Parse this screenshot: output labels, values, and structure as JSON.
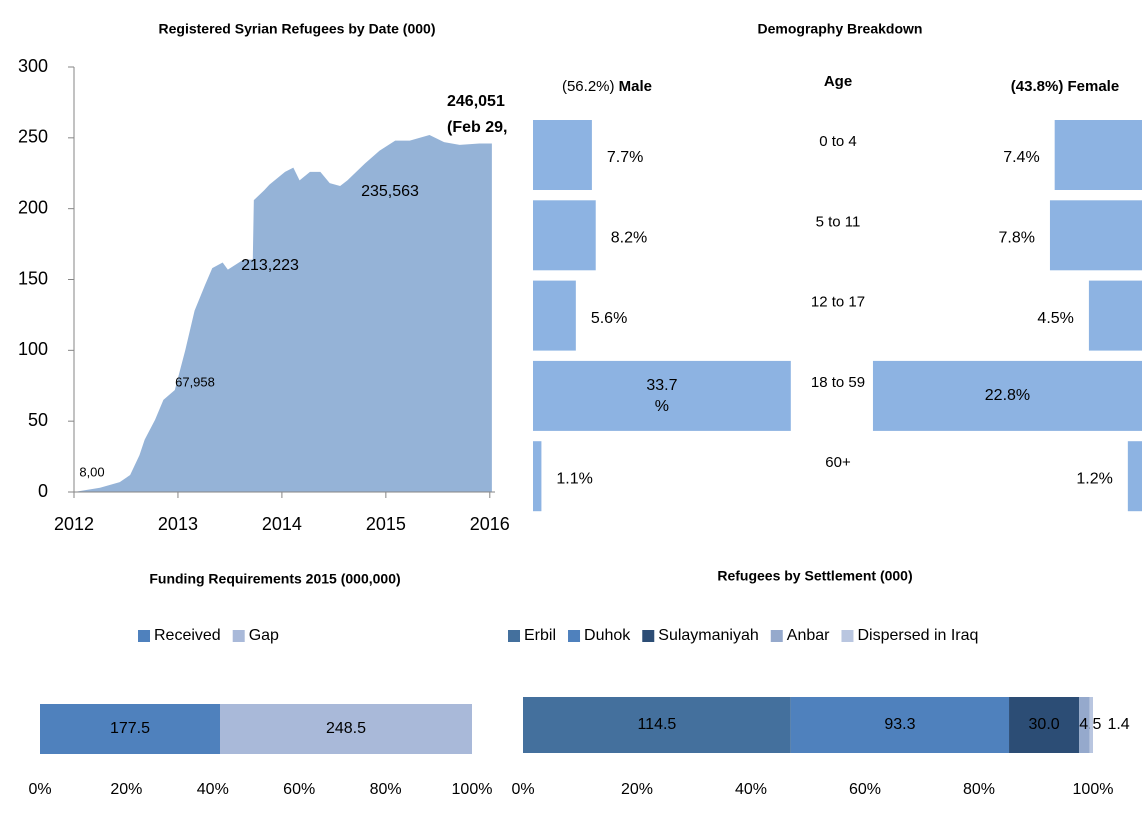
{
  "chart_data": [
    {
      "type": "area",
      "title": "Registered Syrian Refugees by Date (000)",
      "x": [
        2012.0,
        2012.25,
        2012.44,
        2012.54,
        2012.63,
        2012.68,
        2012.78,
        2012.86,
        2012.97,
        2013.07,
        2013.16,
        2013.26,
        2013.33,
        2013.43,
        2013.48,
        2013.63,
        2013.72,
        2013.73,
        2013.83,
        2013.88,
        2014.03,
        2014.11,
        2014.17,
        2014.27,
        2014.37,
        2014.46,
        2014.56,
        2014.63,
        2014.8,
        2014.94,
        2015.09,
        2015.23,
        2015.42,
        2015.56,
        2015.71,
        2015.9,
        2016.02
      ],
      "series": [
        {
          "name": "Registered Syrian Refugees",
          "color": "#95b3d7",
          "values": [
            0,
            3,
            7,
            12,
            26,
            37,
            51,
            65,
            72,
            100,
            128,
            146,
            158,
            162,
            157,
            164,
            164,
            206,
            213,
            217,
            226,
            229,
            220,
            226,
            226,
            218,
            216,
            220,
            232,
            241,
            248,
            248,
            252,
            247,
            245,
            246,
            246
          ]
        }
      ],
      "xlim": [
        2012,
        2016.05
      ],
      "xticks": [
        2012,
        2013,
        2014,
        2015,
        2016
      ],
      "ylim": [
        0,
        300
      ],
      "yticks": [
        0,
        50,
        100,
        150,
        200,
        250,
        300
      ],
      "annotations": [
        {
          "text": "8,00"
        },
        {
          "text": "67,958"
        },
        {
          "text": "213,223"
        },
        {
          "text": "235,563"
        },
        {
          "text": "246,051",
          "color": "#c00000"
        },
        {
          "text": "(Feb 29,"
        }
      ]
    },
    {
      "type": "butterfly",
      "title": "Demography Breakdown",
      "category_label": "Age",
      "categories": [
        "0 to 4",
        "5 to 11",
        "12 to 17",
        "18 to 59",
        "60+"
      ],
      "series": [
        {
          "name": "Male",
          "share": "(56.2%)",
          "color": "#8db3e2",
          "values": [
            7.7,
            8.2,
            5.6,
            33.7,
            1.1
          ],
          "value_labels": [
            "7.7%",
            "8.2%",
            "5.6%",
            "33.7 %",
            "1.1%"
          ]
        },
        {
          "name": "Female",
          "share": "(43.8%)",
          "color": "#8db3e2",
          "values": [
            7.4,
            7.8,
            4.5,
            22.8,
            1.2
          ],
          "value_labels": [
            "7.4%",
            "7.8%",
            "4.5%",
            "22.8%",
            "1.2%"
          ]
        }
      ]
    },
    {
      "type": "stacked_bar",
      "title": "Funding Requirements 2015 (000,000)",
      "series": [
        {
          "name": "Received",
          "color": "#4f81bd",
          "values": [
            177.5
          ]
        },
        {
          "name": "Gap",
          "color": "#a9b9d9",
          "values": [
            248.5
          ]
        }
      ],
      "xlim": [
        0,
        100
      ],
      "xticks": [
        {
          "value": 0,
          "label": "0%"
        },
        {
          "value": 20,
          "label": "20%"
        },
        {
          "value": 40,
          "label": "40%"
        },
        {
          "value": 60,
          "label": "60%"
        },
        {
          "value": 80,
          "label": "80%"
        },
        {
          "value": 100,
          "label": "100%"
        }
      ]
    },
    {
      "type": "stacked_bar",
      "title": "Refugees by Settlement (000)",
      "series": [
        {
          "name": "Erbil",
          "color": "#44709d",
          "values": [
            114.5
          ],
          "value_labels": [
            "114.5"
          ]
        },
        {
          "name": "Duhok",
          "color": "#4f81bd",
          "values": [
            93.3
          ],
          "value_labels": [
            "93.3"
          ]
        },
        {
          "name": "Sulaymaniyah",
          "color": "#2c4d75",
          "values": [
            30.0
          ],
          "value_labels": [
            "30.0"
          ]
        },
        {
          "name": "Anbar",
          "color": "#95a9cc",
          "values": [
            4.5
          ],
          "value_labels": [
            "4.5"
          ]
        },
        {
          "name": "Dispersed in Iraq",
          "color": "#b9c6e0",
          "values": [
            1.4
          ],
          "value_labels": [
            "1.4"
          ]
        }
      ],
      "xlim": [
        0,
        100
      ],
      "xticks": [
        {
          "value": 0,
          "label": "0%"
        },
        {
          "value": 20,
          "label": "20%"
        },
        {
          "value": 40,
          "label": "40%"
        },
        {
          "value": 60,
          "label": "60%"
        },
        {
          "value": 80,
          "label": "80%"
        },
        {
          "value": 100,
          "label": "100%"
        }
      ]
    }
  ]
}
